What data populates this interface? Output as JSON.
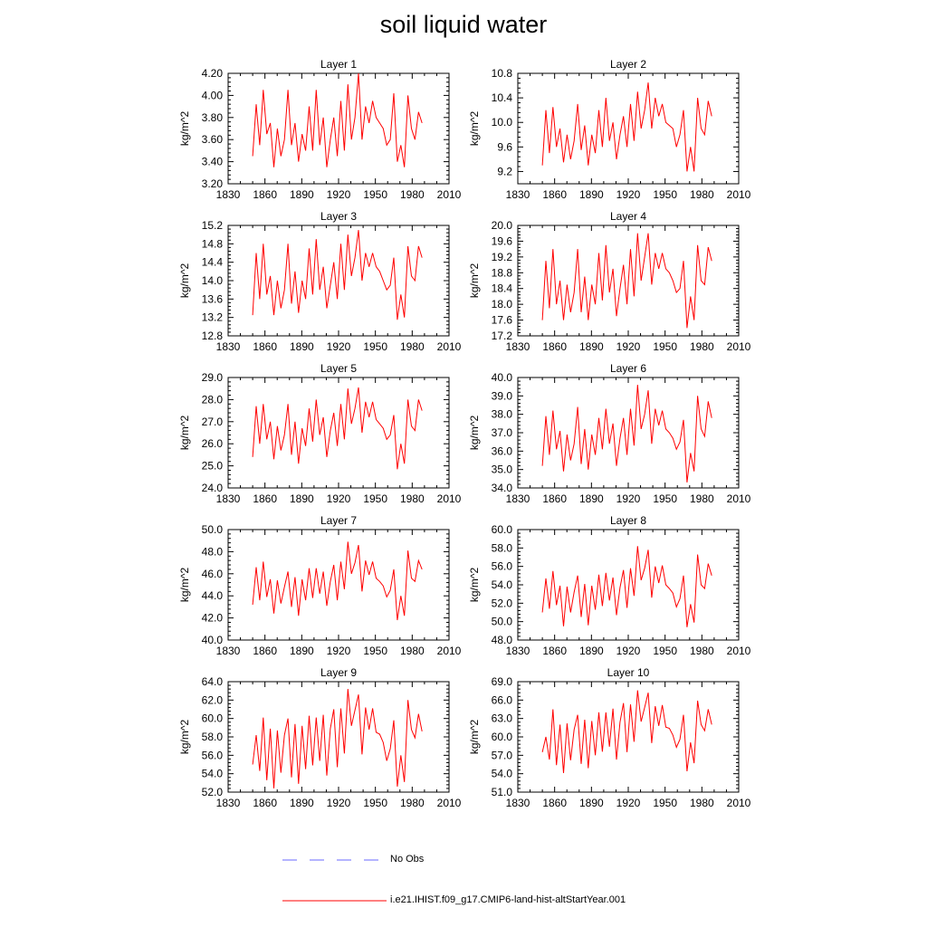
{
  "title": "soil liquid water",
  "legend": {
    "obs_label": "No Obs",
    "model_label": "i.e21.IHIST.f09_g17.CMIP6-land-hist-altStartYear.001",
    "obs_color": "#6a6aff",
    "model_color": "#ff0000"
  },
  "chart_data": [
    {
      "type": "line",
      "title": "Layer 1",
      "ylabel": "kg/m^2",
      "xlim": [
        1830,
        2010
      ],
      "x_ticks": [
        1830,
        1860,
        1890,
        1920,
        1950,
        1980,
        2010
      ],
      "ylim": [
        3.2,
        4.2
      ],
      "y_ticks": [
        "3.20",
        "3.40",
        "3.60",
        "3.80",
        "4.00",
        "4.20"
      ],
      "series": [
        {
          "color": "#ff0000",
          "x_start": 1850,
          "x_end": 1988,
          "values": [
            3.45,
            3.92,
            3.55,
            4.05,
            3.65,
            3.75,
            3.35,
            3.7,
            3.45,
            3.6,
            4.05,
            3.55,
            3.75,
            3.4,
            3.65,
            3.5,
            3.9,
            3.5,
            4.05,
            3.55,
            3.8,
            3.35,
            3.6,
            3.8,
            3.45,
            3.95,
            3.5,
            4.1,
            3.6,
            3.8,
            4.2,
            3.6,
            3.9,
            3.75,
            3.95,
            3.8,
            3.75,
            3.7,
            3.55,
            3.6,
            4.02,
            3.4,
            3.55,
            3.35,
            4.0,
            3.7,
            3.6,
            3.85,
            3.75
          ]
        }
      ]
    },
    {
      "type": "line",
      "title": "Layer 2",
      "ylabel": "kg/m^2",
      "xlim": [
        1830,
        2010
      ],
      "x_ticks": [
        1830,
        1860,
        1890,
        1920,
        1950,
        1980,
        2010
      ],
      "ylim": [
        9.0,
        10.8
      ],
      "y_ticks": [
        "9.2",
        "9.6",
        "10.0",
        "10.4",
        "10.8"
      ],
      "series": [
        {
          "color": "#ff0000",
          "x_start": 1850,
          "x_end": 1988,
          "values": [
            9.3,
            10.2,
            9.5,
            10.25,
            9.6,
            9.9,
            9.35,
            9.8,
            9.4,
            9.7,
            10.3,
            9.55,
            9.95,
            9.3,
            9.8,
            9.5,
            10.2,
            9.6,
            10.4,
            9.7,
            10.0,
            9.4,
            9.8,
            10.1,
            9.6,
            10.3,
            9.7,
            10.5,
            9.9,
            10.2,
            10.65,
            9.9,
            10.4,
            10.1,
            10.3,
            10.0,
            9.95,
            9.9,
            9.6,
            9.8,
            10.2,
            9.2,
            9.6,
            9.2,
            10.4,
            9.9,
            9.8,
            10.35,
            10.1
          ]
        }
      ]
    },
    {
      "type": "line",
      "title": "Layer 3",
      "ylabel": "kg/m^2",
      "xlim": [
        1830,
        2010
      ],
      "x_ticks": [
        1830,
        1860,
        1890,
        1920,
        1950,
        1980,
        2010
      ],
      "ylim": [
        12.8,
        15.2
      ],
      "y_ticks": [
        "12.8",
        "13.2",
        "13.6",
        "14.0",
        "14.4",
        "14.8",
        "15.2"
      ],
      "series": [
        {
          "color": "#ff0000",
          "x_start": 1850,
          "x_end": 1988,
          "values": [
            13.25,
            14.6,
            13.6,
            14.8,
            13.7,
            14.1,
            13.25,
            14.0,
            13.4,
            13.8,
            14.8,
            13.5,
            14.2,
            13.3,
            14.0,
            13.6,
            14.7,
            13.7,
            14.9,
            13.8,
            14.3,
            13.4,
            13.9,
            14.4,
            13.6,
            14.8,
            13.8,
            15.0,
            14.1,
            14.5,
            15.1,
            14.0,
            14.6,
            14.3,
            14.6,
            14.3,
            14.2,
            14.0,
            13.8,
            13.9,
            14.5,
            13.15,
            13.7,
            13.2,
            14.75,
            14.1,
            14.0,
            14.75,
            14.5
          ]
        }
      ]
    },
    {
      "type": "line",
      "title": "Layer 4",
      "ylabel": "kg/m^2",
      "xlim": [
        1830,
        2010
      ],
      "x_ticks": [
        1830,
        1860,
        1890,
        1920,
        1950,
        1980,
        2010
      ],
      "ylim": [
        17.2,
        20.0
      ],
      "y_ticks": [
        "17.2",
        "17.6",
        "18.0",
        "18.4",
        "18.8",
        "19.2",
        "19.6",
        "20.0"
      ],
      "series": [
        {
          "color": "#ff0000",
          "x_start": 1850,
          "x_end": 1988,
          "values": [
            17.6,
            19.1,
            17.9,
            19.4,
            18.0,
            18.6,
            17.6,
            18.5,
            17.8,
            18.3,
            19.4,
            17.8,
            18.7,
            17.6,
            18.5,
            18.0,
            19.3,
            18.1,
            19.5,
            18.3,
            18.9,
            17.7,
            18.4,
            19.0,
            18.0,
            19.4,
            18.2,
            19.8,
            18.6,
            19.2,
            19.8,
            18.5,
            19.3,
            18.9,
            19.3,
            18.9,
            18.8,
            18.6,
            18.3,
            18.4,
            19.1,
            17.4,
            18.2,
            17.6,
            19.5,
            18.6,
            18.5,
            19.45,
            19.1
          ]
        }
      ]
    },
    {
      "type": "line",
      "title": "Layer 5",
      "ylabel": "kg/m^2",
      "xlim": [
        1830,
        2010
      ],
      "x_ticks": [
        1830,
        1860,
        1890,
        1920,
        1950,
        1980,
        2010
      ],
      "ylim": [
        24.0,
        29.0
      ],
      "y_ticks": [
        "24.0",
        "25.0",
        "26.0",
        "27.0",
        "28.0",
        "29.0"
      ],
      "series": [
        {
          "color": "#ff0000",
          "x_start": 1850,
          "x_end": 1988,
          "values": [
            25.4,
            27.7,
            26.0,
            27.8,
            26.2,
            27.0,
            25.3,
            26.8,
            25.7,
            26.4,
            27.8,
            25.5,
            27.0,
            25.1,
            26.7,
            25.9,
            27.6,
            26.1,
            28.0,
            26.4,
            27.2,
            25.4,
            26.6,
            27.4,
            25.9,
            27.8,
            26.2,
            28.5,
            26.9,
            27.6,
            28.55,
            26.5,
            27.9,
            27.2,
            27.9,
            27.1,
            26.9,
            26.7,
            26.2,
            26.4,
            27.3,
            24.85,
            26.0,
            25.1,
            28.0,
            26.8,
            26.6,
            28.0,
            27.5
          ]
        }
      ]
    },
    {
      "type": "line",
      "title": "Layer 6",
      "ylabel": "kg/m^2",
      "xlim": [
        1830,
        2010
      ],
      "x_ticks": [
        1830,
        1860,
        1890,
        1920,
        1950,
        1980,
        2010
      ],
      "ylim": [
        34.0,
        40.0
      ],
      "y_ticks": [
        "34.0",
        "35.0",
        "36.0",
        "37.0",
        "38.0",
        "39.0",
        "40.0"
      ],
      "series": [
        {
          "color": "#ff0000",
          "x_start": 1850,
          "x_end": 1988,
          "values": [
            35.2,
            37.9,
            35.8,
            38.2,
            36.1,
            37.1,
            34.9,
            36.9,
            35.5,
            36.4,
            38.4,
            35.3,
            37.2,
            35.0,
            36.9,
            35.8,
            37.8,
            36.1,
            38.3,
            36.4,
            37.5,
            35.2,
            36.7,
            37.8,
            35.8,
            38.3,
            36.3,
            39.6,
            37.2,
            38.0,
            39.3,
            36.4,
            38.3,
            37.4,
            38.2,
            37.2,
            37.0,
            36.7,
            36.1,
            36.5,
            37.7,
            34.3,
            35.9,
            34.9,
            39.0,
            37.2,
            36.8,
            38.7,
            37.8
          ]
        }
      ]
    },
    {
      "type": "line",
      "title": "Layer 7",
      "ylabel": "kg/m^2",
      "xlim": [
        1830,
        2010
      ],
      "x_ticks": [
        1830,
        1860,
        1890,
        1920,
        1950,
        1980,
        2010
      ],
      "ylim": [
        40.0,
        50.0
      ],
      "y_ticks": [
        "40.0",
        "42.0",
        "44.0",
        "46.0",
        "48.0",
        "50.0"
      ],
      "series": [
        {
          "color": "#ff0000",
          "x_start": 1850,
          "x_end": 1988,
          "values": [
            43.2,
            46.6,
            43.6,
            47.1,
            43.9,
            45.5,
            42.4,
            45.4,
            43.3,
            44.8,
            46.2,
            43.0,
            45.7,
            42.2,
            45.5,
            43.6,
            46.5,
            43.8,
            46.5,
            44.2,
            46.2,
            43.1,
            45.3,
            46.8,
            43.6,
            47.1,
            44.6,
            48.9,
            46.0,
            47.0,
            48.6,
            44.4,
            47.2,
            45.9,
            47.1,
            45.6,
            45.3,
            44.9,
            43.9,
            44.5,
            46.4,
            41.8,
            44.0,
            42.2,
            48.1,
            45.6,
            45.3,
            47.2,
            46.4
          ]
        }
      ]
    },
    {
      "type": "line",
      "title": "Layer 8",
      "ylabel": "kg/m^2",
      "xlim": [
        1830,
        2010
      ],
      "x_ticks": [
        1830,
        1860,
        1890,
        1920,
        1950,
        1980,
        2010
      ],
      "ylim": [
        48.0,
        60.0
      ],
      "y_ticks": [
        "48.0",
        "50.0",
        "52.0",
        "54.0",
        "56.0",
        "58.0",
        "60.0"
      ],
      "series": [
        {
          "color": "#ff0000",
          "x_start": 1850,
          "x_end": 1988,
          "values": [
            51.0,
            54.7,
            51.4,
            55.5,
            51.8,
            53.9,
            49.5,
            53.8,
            51.0,
            53.2,
            55.0,
            50.5,
            54.1,
            49.6,
            53.9,
            51.3,
            55.1,
            51.7,
            55.3,
            52.3,
            54.8,
            50.7,
            53.7,
            55.6,
            51.5,
            55.8,
            52.8,
            58.2,
            54.5,
            55.8,
            57.8,
            52.6,
            56.0,
            54.2,
            56.1,
            54.0,
            53.6,
            53.1,
            51.6,
            52.5,
            55.0,
            49.4,
            51.9,
            49.9,
            57.3,
            54.0,
            53.6,
            56.3,
            55.0
          ]
        }
      ]
    },
    {
      "type": "line",
      "title": "Layer 9",
      "ylabel": "kg/m^2",
      "xlim": [
        1830,
        2010
      ],
      "x_ticks": [
        1830,
        1860,
        1890,
        1920,
        1950,
        1980,
        2010
      ],
      "ylim": [
        52.0,
        64.0
      ],
      "y_ticks": [
        "52.0",
        "54.0",
        "56.0",
        "58.0",
        "60.0",
        "62.0",
        "64.0"
      ],
      "series": [
        {
          "color": "#ff0000",
          "x_start": 1850,
          "x_end": 1988,
          "values": [
            55.0,
            58.2,
            54.3,
            60.1,
            53.3,
            58.9,
            52.4,
            58.7,
            54.1,
            58.2,
            60.0,
            53.6,
            59.4,
            52.9,
            59.2,
            54.5,
            60.3,
            54.9,
            60.1,
            55.4,
            60.4,
            53.8,
            58.9,
            61.0,
            54.7,
            61.1,
            56.2,
            63.2,
            59.2,
            60.9,
            62.6,
            56.1,
            61.2,
            58.8,
            61.1,
            58.5,
            58.3,
            57.4,
            55.4,
            56.7,
            59.8,
            52.6,
            56.0,
            53.1,
            62.0,
            58.8,
            57.9,
            60.5,
            58.6
          ]
        }
      ]
    },
    {
      "type": "line",
      "title": "Layer 10",
      "ylabel": "kg/m^2",
      "xlim": [
        1830,
        2010
      ],
      "x_ticks": [
        1830,
        1860,
        1890,
        1920,
        1950,
        1980,
        2010
      ],
      "ylim": [
        51.0,
        69.0
      ],
      "y_ticks": [
        "51.0",
        "54.0",
        "57.0",
        "60.0",
        "63.0",
        "66.0",
        "69.0"
      ],
      "series": [
        {
          "color": "#ff0000",
          "x_start": 1850,
          "x_end": 1988,
          "values": [
            57.5,
            60.0,
            56.3,
            64.5,
            55.4,
            62.0,
            54.1,
            62.2,
            56.2,
            61.2,
            63.6,
            55.6,
            62.8,
            54.9,
            62.6,
            57.0,
            64.0,
            57.6,
            64.0,
            58.4,
            64.6,
            56.3,
            62.4,
            65.5,
            57.5,
            65.3,
            59.2,
            67.6,
            62.5,
            64.8,
            67.2,
            59.0,
            65.0,
            61.8,
            65.2,
            61.6,
            61.4,
            60.3,
            58.3,
            59.6,
            63.6,
            54.4,
            59.1,
            55.7,
            65.9,
            62.0,
            61.0,
            64.5,
            62.0
          ]
        }
      ]
    }
  ]
}
